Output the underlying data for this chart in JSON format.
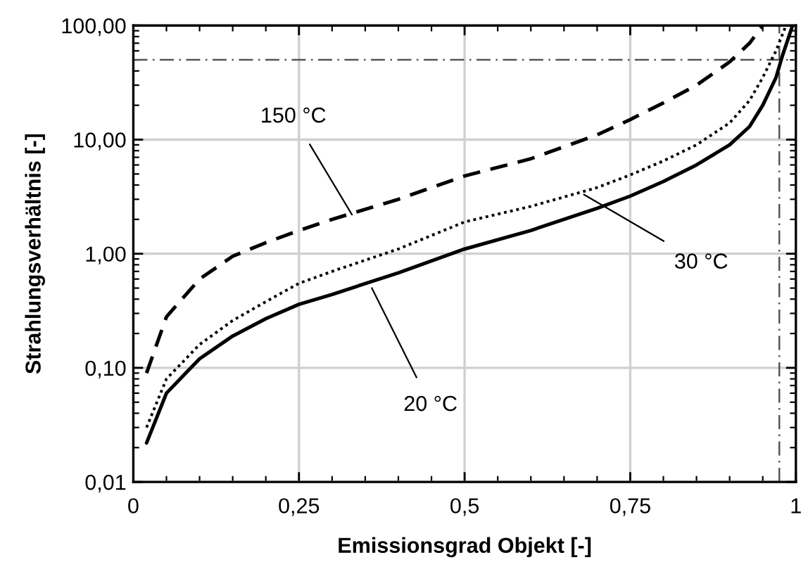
{
  "chart_data": {
    "type": "line",
    "xlabel": "Emissionsgrad Objekt [-]",
    "ylabel": "Strahlungsverhältnis [-]",
    "log": "y",
    "xlim": [
      0,
      1
    ],
    "ylim": [
      0.01,
      100
    ],
    "xticks": [
      0,
      {
        "value": 0.25,
        "label": "0,25"
      },
      {
        "value": 0.5,
        "label": "0,5"
      },
      {
        "value": 0.75,
        "label": "0,75"
      },
      1
    ],
    "yticks": [
      {
        "value": 0.01,
        "label": "0,01"
      },
      {
        "value": 0.1,
        "label": "0,10"
      },
      {
        "value": 1,
        "label": "1,00"
      },
      {
        "value": 10,
        "label": "10,00"
      },
      {
        "value": 100,
        "label": "100,00"
      }
    ],
    "grid": true,
    "legend": false,
    "series": [
      {
        "color": "#000000",
        "line_style": "solid",
        "x": [
          0.02,
          0.05,
          0.1,
          0.15,
          0.2,
          0.25,
          0.3,
          0.4,
          0.5,
          0.6,
          0.7,
          0.75,
          0.8,
          0.85,
          0.9,
          0.93,
          0.95,
          0.97,
          0.98,
          0.995
        ],
        "values": [
          0.022,
          0.06,
          0.12,
          0.19,
          0.27,
          0.36,
          0.44,
          0.68,
          1.1,
          1.6,
          2.5,
          3.2,
          4.3,
          6.0,
          9.0,
          13,
          20,
          35,
          55,
          100
        ]
      },
      {
        "color": "#000000",
        "line_style": "dotted",
        "x": [
          0.02,
          0.05,
          0.1,
          0.15,
          0.2,
          0.25,
          0.3,
          0.4,
          0.5,
          0.6,
          0.7,
          0.75,
          0.8,
          0.85,
          0.9,
          0.93,
          0.95,
          0.97,
          0.985
        ],
        "values": [
          0.03,
          0.08,
          0.16,
          0.26,
          0.38,
          0.55,
          0.7,
          1.1,
          1.9,
          2.6,
          3.8,
          4.9,
          6.5,
          9,
          14,
          22,
          35,
          60,
          100
        ]
      },
      {
        "color": "#000000",
        "line_style": "dashed",
        "x": [
          0.02,
          0.05,
          0.1,
          0.15,
          0.2,
          0.25,
          0.3,
          0.4,
          0.5,
          0.6,
          0.7,
          0.75,
          0.8,
          0.85,
          0.9,
          0.93,
          0.95
        ],
        "values": [
          0.09,
          0.28,
          0.6,
          0.95,
          1.25,
          1.6,
          2.0,
          3.0,
          4.8,
          6.8,
          11,
          15,
          21,
          30,
          48,
          70,
          100
        ]
      }
    ],
    "ref_lines": [
      {
        "axis": "y",
        "value": 50,
        "color": "#555555",
        "line_style": "dashdot"
      },
      {
        "axis": "x",
        "value": 0.975,
        "color": "#555555",
        "line_style": "dashdot"
      }
    ],
    "annotations": [
      {
        "text": "20 °C",
        "x": 0.36,
        "y": 0.5
      },
      {
        "text": "30 °C",
        "x": 0.68,
        "y": 3.3
      },
      {
        "text": "150 °C",
        "x": 0.33,
        "y": 2.2
      }
    ]
  }
}
